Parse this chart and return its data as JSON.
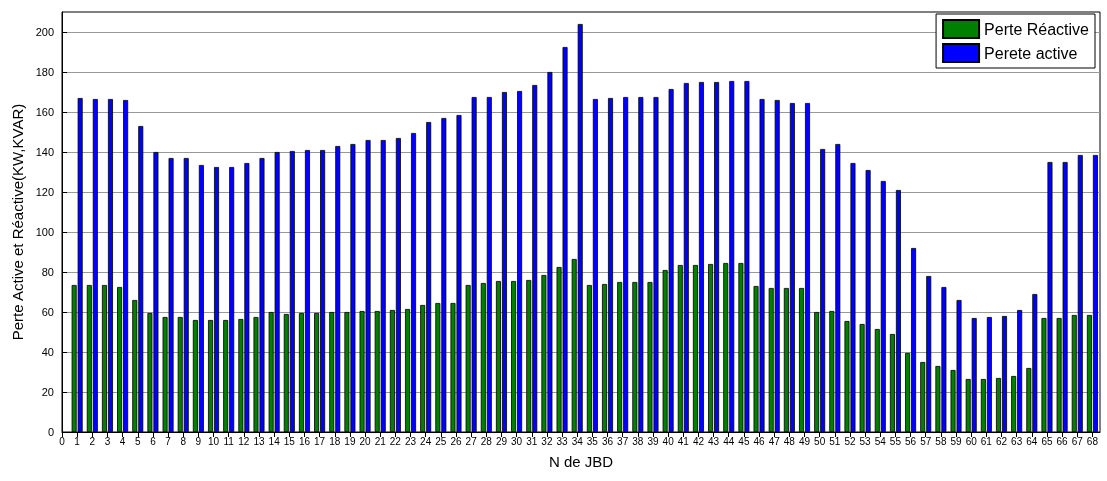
{
  "chart_data": {
    "type": "bar",
    "xlabel": "N de JBD",
    "ylabel": "Perte Active et Réactive(KW,KVAR)",
    "x": [
      1,
      2,
      3,
      4,
      5,
      6,
      7,
      8,
      9,
      10,
      11,
      12,
      13,
      14,
      15,
      16,
      17,
      18,
      19,
      20,
      21,
      22,
      23,
      24,
      25,
      26,
      27,
      28,
      29,
      30,
      31,
      32,
      33,
      34,
      35,
      36,
      37,
      38,
      39,
      40,
      41,
      42,
      43,
      44,
      45,
      46,
      47,
      48,
      49,
      50,
      51,
      52,
      53,
      54,
      55,
      56,
      57,
      58,
      59,
      60,
      61,
      62,
      63,
      64,
      65,
      66,
      67,
      68
    ],
    "series": [
      {
        "name": "Perte Réactive",
        "color": "#008000",
        "values": [
          73.5,
          73.5,
          73.5,
          72.5,
          66,
          59.5,
          57.5,
          57.5,
          56,
          56,
          56,
          56.5,
          57.5,
          60,
          59,
          59.5,
          59.5,
          60,
          60,
          60.5,
          60.5,
          61,
          61.5,
          63.5,
          64.5,
          64.5,
          73.5,
          74.5,
          75.5,
          75.5,
          76,
          78.5,
          82.5,
          86.5,
          73.5,
          74,
          75,
          75,
          75,
          81,
          83.5,
          83.5,
          84,
          84.5,
          84.5,
          73,
          72,
          72,
          72,
          60,
          60.5,
          55.5,
          54,
          51.5,
          49,
          39.5,
          35,
          33,
          31,
          26.5,
          26.5,
          27,
          28,
          32,
          57,
          57,
          58.5,
          58.5
        ]
      },
      {
        "name": "Perete active",
        "color": "#0000ff",
        "values": [
          167,
          166.5,
          166.5,
          166,
          153,
          140,
          137,
          137,
          133.5,
          132.5,
          132.5,
          134.5,
          137,
          140,
          140.5,
          141,
          141,
          143,
          144,
          146,
          146,
          147,
          149.5,
          155,
          157,
          158.5,
          167.5,
          167.5,
          170,
          170.5,
          173.5,
          180,
          192.5,
          204,
          166.5,
          167,
          167.5,
          167.5,
          167.5,
          171.5,
          174.5,
          175,
          175,
          175.5,
          175.5,
          166.5,
          166,
          164.5,
          164.5,
          141.5,
          144,
          134.5,
          131,
          125.5,
          121,
          92,
          78,
          72.5,
          66,
          57,
          57.5,
          58,
          61,
          69,
          135,
          135,
          138.5,
          138.5
        ]
      }
    ],
    "xlim": [
      0,
      68.5
    ],
    "xticks": [
      0,
      1,
      2,
      3,
      4,
      5,
      6,
      7,
      8,
      9,
      10,
      11,
      12,
      13,
      14,
      15,
      16,
      17,
      18,
      19,
      20,
      21,
      22,
      23,
      24,
      25,
      26,
      27,
      28,
      29,
      30,
      31,
      32,
      33,
      34,
      35,
      36,
      37,
      38,
      39,
      40,
      41,
      42,
      43,
      44,
      45,
      46,
      47,
      48,
      49,
      50,
      51,
      52,
      53,
      54,
      55,
      56,
      57,
      58,
      59,
      60,
      61,
      62,
      63,
      64,
      65,
      66,
      67,
      68
    ],
    "ylim": [
      0,
      210
    ],
    "yticks": [
      0,
      20,
      40,
      60,
      80,
      100,
      120,
      140,
      160,
      180,
      200
    ],
    "grid": "y",
    "legend": "top right"
  }
}
